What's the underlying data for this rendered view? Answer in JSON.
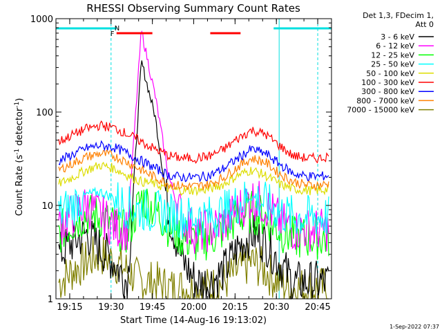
{
  "chart_data": {
    "type": "line",
    "title": "RHESSI Observing Summary Count Rates",
    "xlabel": "Start Time (14-Aug-16 19:13:02)",
    "ylabel_main": "Count Rate (s",
    "ylabel_sup": "-1",
    "ylabel_tail": " detector",
    "ylabel_sup2": "-1",
    "ylabel_close": ")",
    "y_scale": "log",
    "ylim": [
      1,
      1000
    ],
    "xlim_minutes": [
      -5,
      95
    ],
    "x_ticks": [
      {
        "minutes": 0,
        "label": "19:15"
      },
      {
        "minutes": 15,
        "label": "19:30"
      },
      {
        "minutes": 30,
        "label": "19:45"
      },
      {
        "minutes": 45,
        "label": "20:00"
      },
      {
        "minutes": 60,
        "label": "20:15"
      },
      {
        "minutes": 75,
        "label": "20:30"
      },
      {
        "minutes": 90,
        "label": "20:45"
      }
    ],
    "y_ticks": [
      {
        "value": 1,
        "label": "1"
      },
      {
        "value": 10,
        "label": "10"
      },
      {
        "value": 100,
        "label": "100"
      },
      {
        "value": 1000,
        "label": "1000"
      }
    ],
    "legend_header": [
      "Det 1,3, FDecim 1,",
      "Att 0"
    ],
    "legend_position": "right",
    "series": [
      {
        "name": "3 - 6 keV",
        "color": "#000000",
        "values": [
          3,
          4,
          5,
          3.5,
          2.5,
          1.5,
          350,
          90,
          8,
          2.5,
          1.5,
          1.5,
          2,
          3.5,
          5,
          4,
          2.5,
          1.5,
          1.5,
          1.5,
          1.5
        ]
      },
      {
        "name": "6 - 12 keV",
        "color": "#ff00ff",
        "values": [
          6,
          8,
          10,
          8,
          6,
          5.5,
          750,
          150,
          20,
          7,
          5,
          5.5,
          6.5,
          9,
          12,
          10,
          7,
          5.5,
          5.5,
          5.5,
          5.5
        ]
      },
      {
        "name": "12 - 25 keV",
        "color": "#00ff00",
        "values": [
          5,
          6.5,
          8,
          7.5,
          6,
          5,
          12,
          9,
          6,
          4.5,
          4,
          4.5,
          5.5,
          7.5,
          8.5,
          7.5,
          5.5,
          4.5,
          4.5,
          4.5,
          4.5
        ]
      },
      {
        "name": "25 - 50 keV",
        "color": "#00ffff",
        "values": [
          8,
          10,
          13,
          14,
          12,
          9.5,
          9,
          8.5,
          8,
          7.5,
          7.5,
          7.5,
          8.5,
          10.5,
          12.5,
          10.5,
          8.5,
          7.5,
          7.5,
          7.5,
          7.5
        ]
      },
      {
        "name": "50 - 100 keV",
        "color": "#dddd00",
        "values": [
          17,
          20,
          24,
          27,
          25,
          21,
          18,
          17,
          15,
          14.5,
          14.5,
          15,
          17,
          21,
          24,
          21,
          17,
          15,
          14.5,
          14.5,
          15
        ]
      },
      {
        "name": "100 - 300 keV",
        "color": "#ff0000",
        "values": [
          48,
          57,
          66,
          72,
          68,
          58,
          48,
          40,
          34,
          32,
          32,
          34,
          40,
          52,
          64,
          58,
          44,
          34,
          32,
          32,
          34
        ]
      },
      {
        "name": "300 - 800 keV",
        "color": "#0000ff",
        "values": [
          30,
          35,
          41,
          44,
          42,
          36,
          30,
          25,
          21,
          20,
          20,
          21,
          25,
          32,
          40,
          36,
          28,
          22,
          20.5,
          20.5,
          21
        ]
      },
      {
        "name": "800 - 7000 keV",
        "color": "#ff8000",
        "values": [
          24,
          28,
          33,
          36,
          34,
          29,
          24,
          20,
          17,
          16,
          16,
          17,
          20,
          26,
          32,
          29,
          22,
          18,
          16.5,
          16.5,
          17
        ]
      },
      {
        "name": "7000 - 15000 keV",
        "color": "#808000",
        "values": [
          1.5,
          2,
          2.5,
          3,
          2.5,
          2,
          1.5,
          1.5,
          1.3,
          1.3,
          1.3,
          1.3,
          1.5,
          2,
          2.5,
          2,
          1.5,
          1.3,
          1.3,
          1.3,
          1.3
        ]
      }
    ],
    "x_minutes": [
      -4,
      1,
      6,
      11,
      16,
      21,
      26,
      31,
      36,
      41,
      46,
      51,
      56,
      61,
      66,
      71,
      76,
      81,
      86,
      91,
      94
    ],
    "annotations": {
      "flare_flag_label": "F",
      "night_flag_label": "N",
      "night_intervals_minutes": [
        [
          -5,
          17
        ],
        [
          74,
          95
        ]
      ],
      "flare_intervals_minutes": [
        [
          17,
          30
        ],
        [
          51,
          62
        ]
      ],
      "night_edges_minutes": [
        15,
        90
      ],
      "saa_edges_minutes": [
        76
      ]
    },
    "date_stamp": "1-Sep-2022 07:37"
  }
}
